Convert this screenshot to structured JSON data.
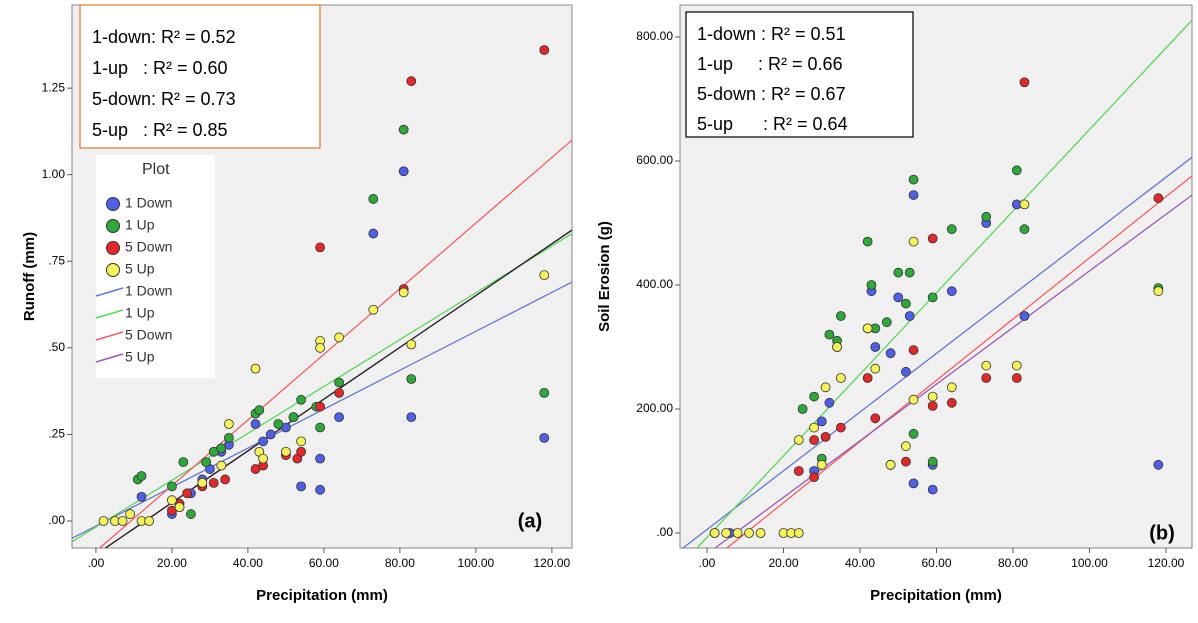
{
  "chart_data": [
    {
      "type": "scatter",
      "x_label": "Precipitation (mm)",
      "y_label": "Runoff (mm)",
      "panel_label": "(a)",
      "annotations": [
        "1-down: R² = 0.52",
        "1-up   : R² = 0.60",
        "5-down: R² = 0.73",
        "5-up   : R² = 0.85"
      ],
      "legend_title": "Plot",
      "xlim": [
        -6.3,
        125.3
      ],
      "ylim": [
        -0.078,
        1.49
      ],
      "xticks": [
        {
          "value": 0,
          "label": ".00"
        },
        {
          "value": 20,
          "label": "20.00"
        },
        {
          "value": 40,
          "label": "40.00"
        },
        {
          "value": 60,
          "label": "60.00"
        },
        {
          "value": 80,
          "label": "80.00"
        },
        {
          "value": 100,
          "label": "100.00"
        },
        {
          "value": 120,
          "label": "120.00"
        }
      ],
      "yticks": [
        {
          "value": 0,
          "label": ".00"
        },
        {
          "value": 0.25,
          "label": ".25"
        },
        {
          "value": 0.5,
          "label": ".50"
        },
        {
          "value": 0.75,
          "label": ".75"
        },
        {
          "value": 1,
          "label": "1.00"
        },
        {
          "value": 1.25,
          "label": "1.25"
        }
      ],
      "series": [
        {
          "name": "1 Down",
          "color": "#5060e6",
          "x": [
            12,
            20,
            22,
            25,
            28,
            30,
            33,
            35,
            42,
            44,
            46,
            50,
            52,
            54,
            59,
            59,
            64,
            73,
            81,
            83,
            118
          ],
          "y": [
            0.07,
            0.02,
            0.04,
            0.08,
            0.12,
            0.15,
            0.2,
            0.22,
            0.28,
            0.23,
            0.25,
            0.27,
            0.3,
            0.1,
            0.18,
            0.09,
            0.3,
            0.83,
            1.01,
            0.3,
            0.24
          ]
        },
        {
          "name": "1 Up",
          "color": "#2ea83a",
          "x": [
            11,
            12,
            20,
            23,
            25,
            29,
            31,
            33,
            35,
            42,
            43,
            48,
            52,
            54,
            58,
            59,
            64,
            73,
            81,
            83,
            118
          ],
          "y": [
            0.12,
            0.13,
            0.1,
            0.17,
            0.02,
            0.17,
            0.2,
            0.21,
            0.24,
            0.31,
            0.32,
            0.28,
            0.3,
            0.35,
            0.33,
            0.27,
            0.4,
            0.93,
            1.13,
            0.41,
            0.37
          ]
        },
        {
          "name": "5 Down",
          "color": "#e2282a",
          "x": [
            20,
            22,
            24,
            28,
            31,
            34,
            42,
            44,
            50,
            53,
            54,
            59,
            59,
            64,
            81,
            83,
            118
          ],
          "y": [
            0.03,
            0.05,
            0.08,
            0.1,
            0.11,
            0.12,
            0.15,
            0.16,
            0.19,
            0.18,
            0.2,
            0.79,
            0.33,
            0.37,
            0.67,
            1.27,
            1.36
          ]
        },
        {
          "name": "5 Up",
          "color": "#f6f25a",
          "x": [
            2,
            5,
            7,
            9,
            12,
            14,
            20,
            22,
            28,
            33,
            35,
            42,
            43,
            44,
            50,
            54,
            59,
            59,
            64,
            73,
            81,
            83,
            118
          ],
          "y": [
            0,
            0,
            0,
            0.02,
            0,
            0,
            0.06,
            0.04,
            0.11,
            0.16,
            0.28,
            0.44,
            0.2,
            0.18,
            0.2,
            0.23,
            0.52,
            0.5,
            0.53,
            0.61,
            0.66,
            0.51,
            0.71
          ]
        }
      ],
      "fit_lines": [
        {
          "name": "1 Down",
          "color": "#6477d2",
          "x": [
            -6.3,
            125.3
          ],
          "y": [
            -0.05,
            0.69
          ]
        },
        {
          "name": "1 Up",
          "color": "#5ad65a",
          "x": [
            -6.3,
            125.3
          ],
          "y": [
            -0.06,
            0.83
          ]
        },
        {
          "name": "5 Down",
          "color": "#f06060",
          "x": [
            1,
            125.3
          ],
          "y": [
            -0.078,
            1.1
          ]
        },
        {
          "name": "5 Up",
          "color": "#9b59b6",
          "x": [
            2.5,
            125.3
          ],
          "y": [
            -0.078,
            0.84
          ]
        },
        {
          "color": "#222222",
          "x": [
            2.5,
            125.3
          ],
          "y": [
            -0.078,
            0.84
          ]
        }
      ]
    },
    {
      "type": "scatter",
      "x_label": "Precipitation (mm)",
      "y_label": "Soil Erosion (g)",
      "panel_label": "(b)",
      "annotations": [
        "1-down : R² = 0.51",
        "1-up     : R² = 0.66",
        "5-down : R² = 0.67",
        "5-up      : R² = 0.64"
      ],
      "xlim": [
        -7.06,
        126.8
      ],
      "ylim": [
        -24.2,
        851.6
      ],
      "xticks": [
        {
          "value": 0,
          "label": ".00"
        },
        {
          "value": 20,
          "label": "20.00"
        },
        {
          "value": 40,
          "label": "40.00"
        },
        {
          "value": 60,
          "label": "60.00"
        },
        {
          "value": 80,
          "label": "80.00"
        },
        {
          "value": 100,
          "label": "100.00"
        },
        {
          "value": 120,
          "label": "120.00"
        }
      ],
      "yticks": [
        {
          "value": 0,
          "label": ".00"
        },
        {
          "value": 200,
          "label": "200.00"
        },
        {
          "value": 400,
          "label": "400.00"
        },
        {
          "value": 600,
          "label": "600.00"
        },
        {
          "value": 800,
          "label": "800.00"
        }
      ],
      "series": [
        {
          "color": "#5060e6",
          "x": [
            2,
            6,
            28,
            30,
            32,
            34,
            42,
            43,
            44,
            48,
            50,
            52,
            53,
            54,
            54,
            59,
            59,
            64,
            73,
            81,
            83,
            118
          ],
          "y": [
            0,
            0,
            100,
            180,
            210,
            300,
            330,
            390,
            300,
            290,
            380,
            260,
            350,
            545,
            80,
            70,
            110,
            390,
            500,
            530,
            350,
            110
          ]
        },
        {
          "color": "#2ea83a",
          "x": [
            25,
            28,
            30,
            32,
            34,
            35,
            42,
            43,
            44,
            47,
            50,
            52,
            53,
            54,
            54,
            59,
            59,
            64,
            73,
            81,
            83,
            118
          ],
          "y": [
            200,
            220,
            120,
            320,
            310,
            350,
            470,
            400,
            330,
            340,
            420,
            370,
            420,
            570,
            160,
            380,
            115,
            490,
            510,
            585,
            490,
            395
          ]
        },
        {
          "color": "#e2282a",
          "x": [
            24,
            28,
            28,
            31,
            35,
            42,
            44,
            48,
            52,
            54,
            59,
            59,
            64,
            73,
            81,
            83,
            118
          ],
          "y": [
            100,
            90,
            150,
            155,
            170,
            250,
            185,
            110,
            115,
            295,
            475,
            205,
            210,
            250,
            250,
            727,
            540
          ]
        },
        {
          "color": "#f6f25a",
          "x": [
            2,
            5,
            8,
            11,
            14,
            20,
            22,
            24,
            24,
            28,
            30,
            31,
            34,
            35,
            42,
            44,
            48,
            52,
            54,
            54,
            59,
            64,
            73,
            81,
            83,
            118
          ],
          "y": [
            0,
            0,
            0,
            0,
            0,
            0,
            0,
            0,
            150,
            170,
            110,
            235,
            300,
            250,
            330,
            265,
            110,
            140,
            470,
            215,
            220,
            235,
            270,
            270,
            530,
            390
          ]
        }
      ],
      "fit_lines": [
        {
          "color": "#6477d2",
          "x": [
            -6.3,
            126.8
          ],
          "y": [
            -24.2,
            606
          ]
        },
        {
          "color": "#5ad65a",
          "x": [
            -2.6,
            126.8
          ],
          "y": [
            -24.2,
            827
          ]
        },
        {
          "color": "#f06060",
          "x": [
            5.2,
            126.8
          ],
          "y": [
            -24.2,
            576
          ]
        },
        {
          "color": "#9b59b6",
          "x": [
            2.1,
            126.8
          ],
          "y": [
            -24.2,
            545
          ]
        }
      ]
    }
  ]
}
